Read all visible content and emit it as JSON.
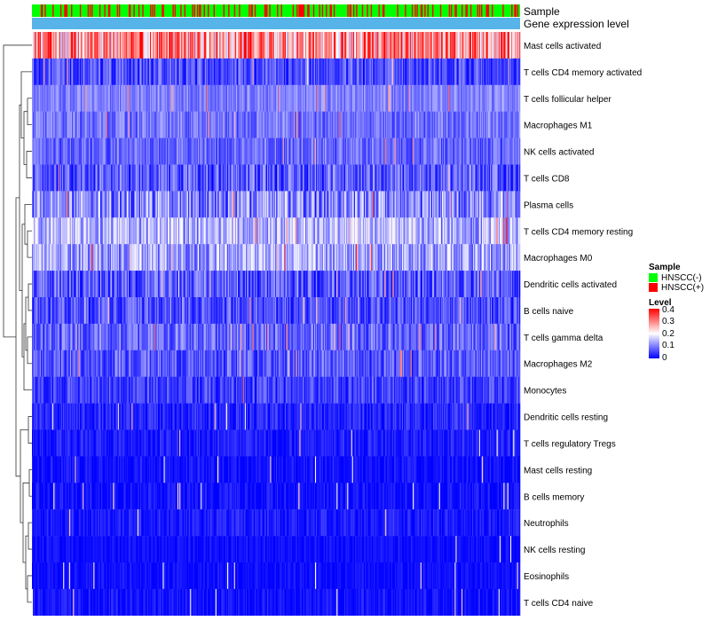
{
  "chart_data": {
    "type": "heatmap",
    "annotation_tracks": [
      "Sample",
      "Gene expression level"
    ],
    "rows": [
      {
        "name": "Mast cells activated",
        "mean": 0.28,
        "spread": 0.14
      },
      {
        "name": "T cells CD4 memory activated",
        "mean": 0.06,
        "spread": 0.06
      },
      {
        "name": "T cells follicular helper",
        "mean": 0.1,
        "spread": 0.04
      },
      {
        "name": "Macrophages M1",
        "mean": 0.09,
        "spread": 0.05
      },
      {
        "name": "NK cells activated",
        "mean": 0.08,
        "spread": 0.05
      },
      {
        "name": "T cells CD8",
        "mean": 0.07,
        "spread": 0.07
      },
      {
        "name": "Plasma cells",
        "mean": 0.1,
        "spread": 0.09
      },
      {
        "name": "T cells CD4 memory resting",
        "mean": 0.14,
        "spread": 0.08
      },
      {
        "name": "Macrophages M0",
        "mean": 0.13,
        "spread": 0.08
      },
      {
        "name": "Dendritic cells activated",
        "mean": 0.07,
        "spread": 0.07
      },
      {
        "name": "B cells naive",
        "mean": 0.06,
        "spread": 0.06
      },
      {
        "name": "T cells gamma delta",
        "mean": 0.08,
        "spread": 0.06
      },
      {
        "name": "Macrophages M2",
        "mean": 0.07,
        "spread": 0.06
      },
      {
        "name": "Monocytes",
        "mean": 0.05,
        "spread": 0.05
      },
      {
        "name": "Dendritic cells resting",
        "mean": 0.03,
        "spread": 0.04
      },
      {
        "name": "T cells regulatory  Tregs",
        "mean": 0.02,
        "spread": 0.03
      },
      {
        "name": "Mast cells resting",
        "mean": 0.01,
        "spread": 0.03
      },
      {
        "name": "B cells memory",
        "mean": 0.01,
        "spread": 0.03
      },
      {
        "name": "Neutrophils",
        "mean": 0.02,
        "spread": 0.03
      },
      {
        "name": "NK cells resting",
        "mean": 0.01,
        "spread": 0.02
      },
      {
        "name": "Eosinophils",
        "mean": 0.01,
        "spread": 0.02
      },
      {
        "name": "T cells CD4 naive",
        "mean": 0.01,
        "spread": 0.03
      }
    ],
    "n_samples": 500,
    "sample_groups": [
      "HNSCC(-)",
      "HNSCC(+)"
    ],
    "sample_group_fraction_positive": 0.22,
    "legend": {
      "sample": {
        "title": "Sample",
        "items": [
          {
            "label": "HNSCC(-)",
            "color": "#00ff00"
          },
          {
            "label": "HNSCC(+)",
            "color": "#ff0000"
          }
        ]
      },
      "level": {
        "title": "Level",
        "ticks": [
          "0.4",
          "0.3",
          "0.2",
          "0.1",
          "0"
        ],
        "range": [
          0,
          0.4
        ],
        "colors": [
          "#0000ff",
          "#ffffff",
          "#ff0000"
        ]
      }
    },
    "gene_expression_color": "#56b4e9",
    "legend_placement": "right"
  }
}
